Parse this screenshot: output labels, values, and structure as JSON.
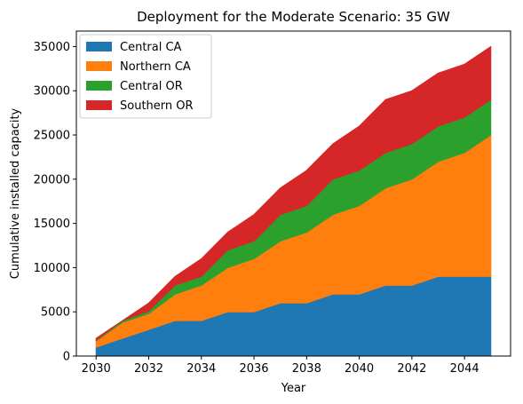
{
  "chart_data": {
    "type": "area",
    "stacked": true,
    "title": "Deployment for the Moderate Scenario: 35 GW",
    "xlabel": "Year",
    "ylabel": "Cumulative installed capacity",
    "xlim": [
      2029.25,
      2045.75
    ],
    "ylim": [
      0,
      36750
    ],
    "x": [
      2030,
      2031,
      2032,
      2033,
      2034,
      2035,
      2036,
      2037,
      2038,
      2039,
      2040,
      2041,
      2042,
      2043,
      2044,
      2045
    ],
    "x_ticks": [
      "2030",
      "2032",
      "2034",
      "2036",
      "2038",
      "2040",
      "2042",
      "2044"
    ],
    "x_tick_values": [
      2030,
      2032,
      2034,
      2036,
      2038,
      2040,
      2042,
      2044
    ],
    "y_ticks": [
      "0",
      "5000",
      "10000",
      "15000",
      "20000",
      "25000",
      "30000",
      "35000"
    ],
    "y_tick_values": [
      0,
      5000,
      10000,
      15000,
      20000,
      25000,
      30000,
      35000
    ],
    "grid": false,
    "legend_position": "top-left",
    "series": [
      {
        "name": "Central CA",
        "color": "#1f77b4",
        "values": [
          1000,
          2000,
          3000,
          4000,
          4000,
          5000,
          5000,
          6000,
          6000,
          7000,
          7000,
          8000,
          8000,
          9000,
          9000,
          9000
        ]
      },
      {
        "name": "Northern CA",
        "color": "#ff7f0e",
        "values": [
          700,
          1800,
          1800,
          3000,
          4000,
          5000,
          6000,
          7000,
          8000,
          9000,
          10000,
          11000,
          12000,
          13000,
          14000,
          16000
        ]
      },
      {
        "name": "Central OR",
        "color": "#2ca02c",
        "values": [
          100,
          200,
          300,
          1000,
          1000,
          2000,
          2000,
          3000,
          3000,
          4000,
          4000,
          4000,
          4000,
          4000,
          4000,
          4000
        ]
      },
      {
        "name": "Southern OR",
        "color": "#d62728",
        "values": [
          200,
          0,
          900,
          1000,
          2000,
          2000,
          3000,
          3000,
          4000,
          4000,
          5000,
          6000,
          6000,
          6000,
          6000,
          6000
        ]
      }
    ]
  }
}
